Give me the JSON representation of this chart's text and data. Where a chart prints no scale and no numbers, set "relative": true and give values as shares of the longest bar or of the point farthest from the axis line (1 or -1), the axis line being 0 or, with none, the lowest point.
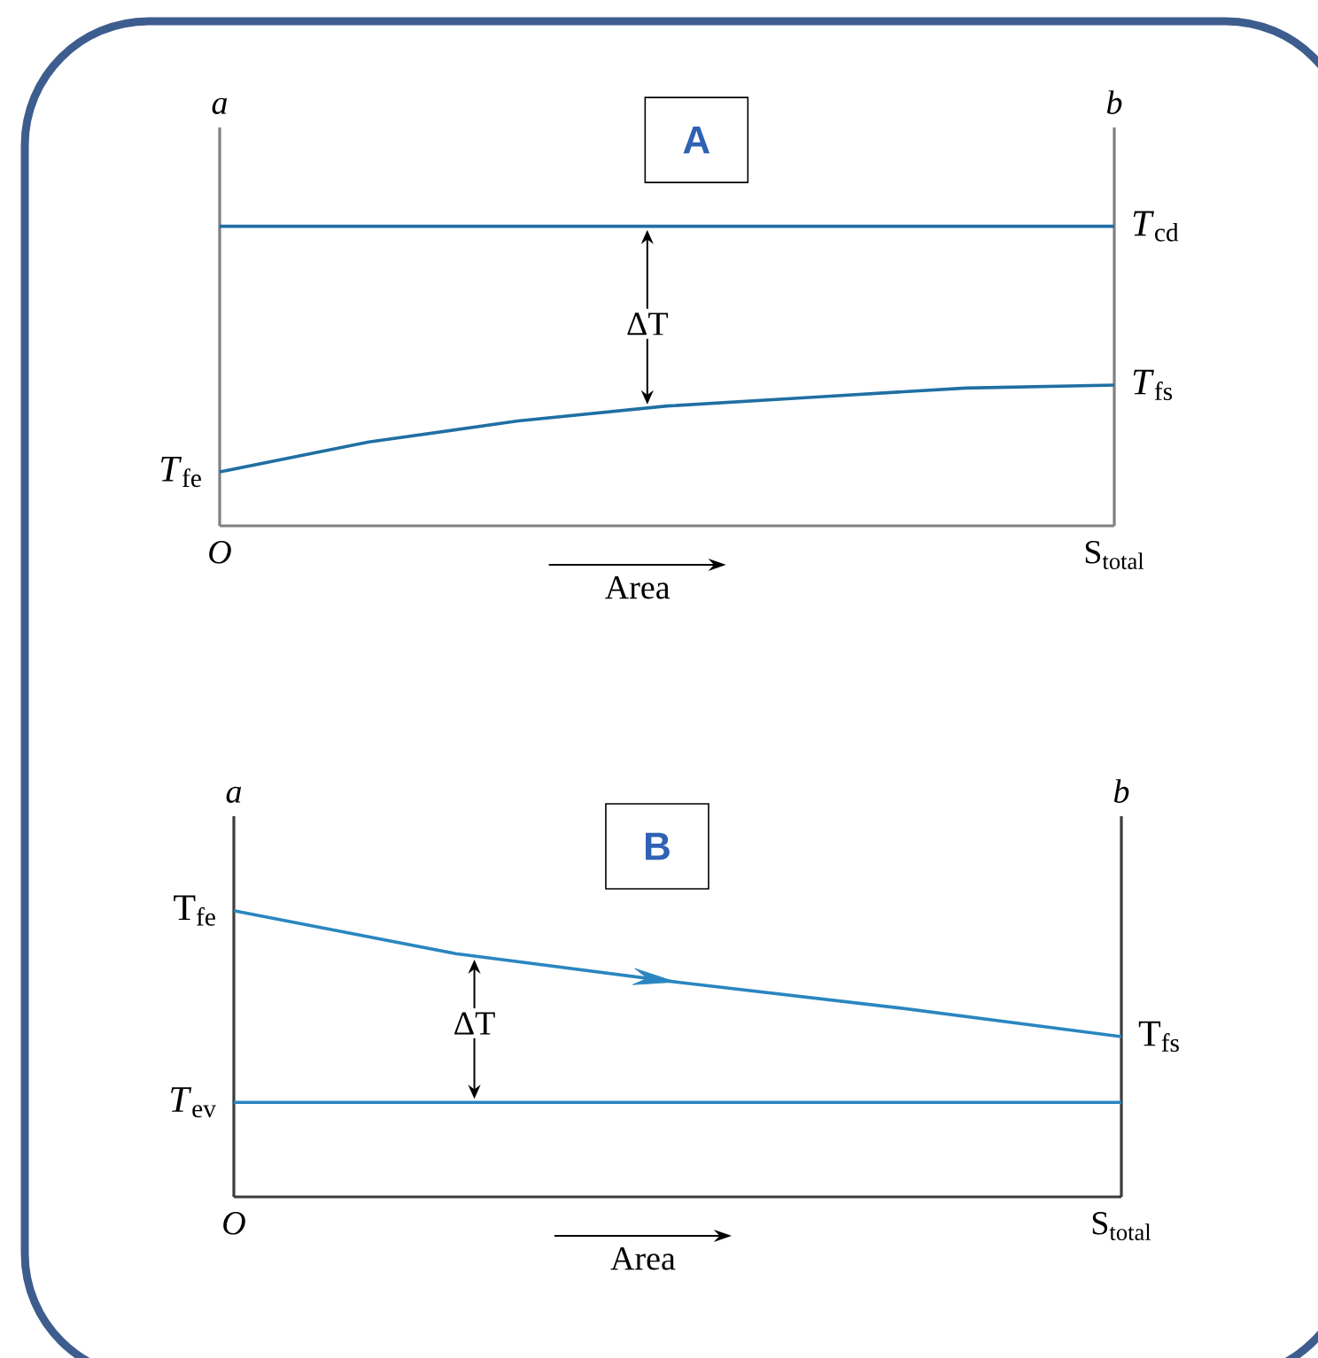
{
  "chart_data": [
    {
      "type": "line",
      "title": "A",
      "xlabel": "Area",
      "relative": true,
      "categories": [
        "*O*",
        null,
        null,
        null,
        null,
        null,
        "S$_{total}$"
      ],
      "series": [
        {
          "color": "#1f6fa3",
          "values": [
            1,
            1,
            1,
            1,
            1,
            1,
            1
          ]
        },
        {
          "color": "#1f6fa3",
          "values": [
            0.18,
            0.28,
            0.35,
            0.4,
            0.43,
            0.46,
            0.47
          ]
        }
      ],
      "annotations": [
        "*a*",
        "*b*",
        "ΔT",
        {
          "text": "*T*$_{cd}$",
          "x": "S$_{total}$",
          "y": 1
        },
        {
          "text": "*T*$_{fs}$",
          "x": "S$_{total}$",
          "y": 0.47
        },
        {
          "text": "*T*$_{fe}$",
          "x": "*O*",
          "y": 0.18
        }
      ]
    },
    {
      "type": "line",
      "title": "B",
      "xlabel": "Area",
      "relative": true,
      "categories": [
        "*O*",
        null,
        null,
        null,
        "S$_{total}$"
      ],
      "series": [
        {
          "color": "#2a86c0",
          "values": [
            1,
            0.85,
            0.75,
            0.66,
            0.56
          ]
        },
        {
          "color": "#2a86c0",
          "values": [
            0.33,
            0.33,
            0.33,
            0.33,
            0.33
          ]
        }
      ],
      "annotations": [
        "*a*",
        "*b*",
        "ΔT",
        {
          "text": "T$_{fe}$",
          "x": "*O*",
          "y": 1
        },
        {
          "text": "T$_{fs}$",
          "x": "S$_{total}$",
          "y": 0.56
        },
        {
          "text": "*T*$_{ev}$",
          "x": "*O*",
          "y": 0.33
        }
      ]
    }
  ]
}
